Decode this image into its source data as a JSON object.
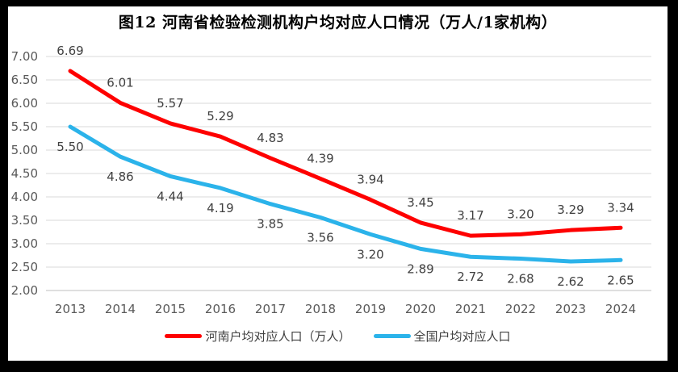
{
  "title": "图12  河南省检验检测机构户均对应人口情况（万人/1家机构）",
  "chart_data": {
    "type": "line",
    "title": "图12  河南省检验检测机构户均对应人口情况（万人/1家机构）",
    "categories": [
      "2013",
      "2014",
      "2015",
      "2016",
      "2017",
      "2018",
      "2019",
      "2020",
      "2021",
      "2022",
      "2023",
      "2024"
    ],
    "series": [
      {
        "name": "河南户均对应人口（万人）",
        "color": "#FE0000",
        "label_position": "above",
        "values": [
          6.69,
          6.01,
          5.57,
          5.29,
          4.83,
          4.39,
          3.94,
          3.45,
          3.17,
          3.2,
          3.29,
          3.34
        ]
      },
      {
        "name": "全国户均对应人口",
        "color": "#2BB3EA",
        "label_position": "below",
        "values": [
          5.5,
          4.86,
          4.44,
          4.19,
          3.85,
          3.56,
          3.2,
          2.89,
          2.72,
          2.68,
          2.62,
          2.65
        ]
      }
    ],
    "xlabel": "",
    "ylabel": "",
    "ylim": [
      2.0,
      7.0
    ],
    "ytick_step": 0.5,
    "value_decimals": 2,
    "grid": true,
    "gridline_color": "#D9D9D9",
    "axis_line_color": "#BFBFBF",
    "axis_label_color": "#595959",
    "data_label_color": "#404040",
    "legend_position": "bottom",
    "frame_color": "#000000"
  }
}
